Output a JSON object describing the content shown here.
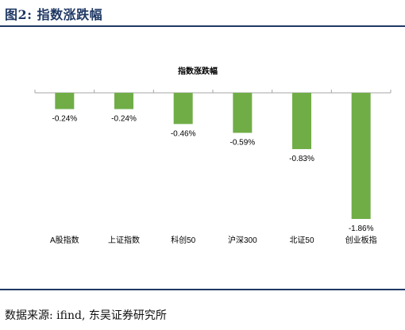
{
  "figure": {
    "title": "图2:   指数涨跌幅",
    "source": "数据来源: ifind, 东吴证券研究所"
  },
  "colors": {
    "header_blue": "#1f3864",
    "bar_green": "#70ad47",
    "axis_gray": "#a6a6a6"
  },
  "chart_data": {
    "type": "bar",
    "title": "指数涨跌幅",
    "categories": [
      "A股指数",
      "上证指数",
      "科创50",
      "沪深300",
      "北证50",
      "创业板指"
    ],
    "values": [
      -0.24,
      -0.24,
      -0.46,
      -0.59,
      -0.83,
      -1.86
    ],
    "value_labels": [
      "-0.24%",
      "-0.24%",
      "-0.46%",
      "-0.59%",
      "-0.83%",
      "-1.86%"
    ],
    "unit": "%",
    "ylim": [
      -2.0,
      0
    ],
    "grid": false,
    "legend": "none"
  }
}
